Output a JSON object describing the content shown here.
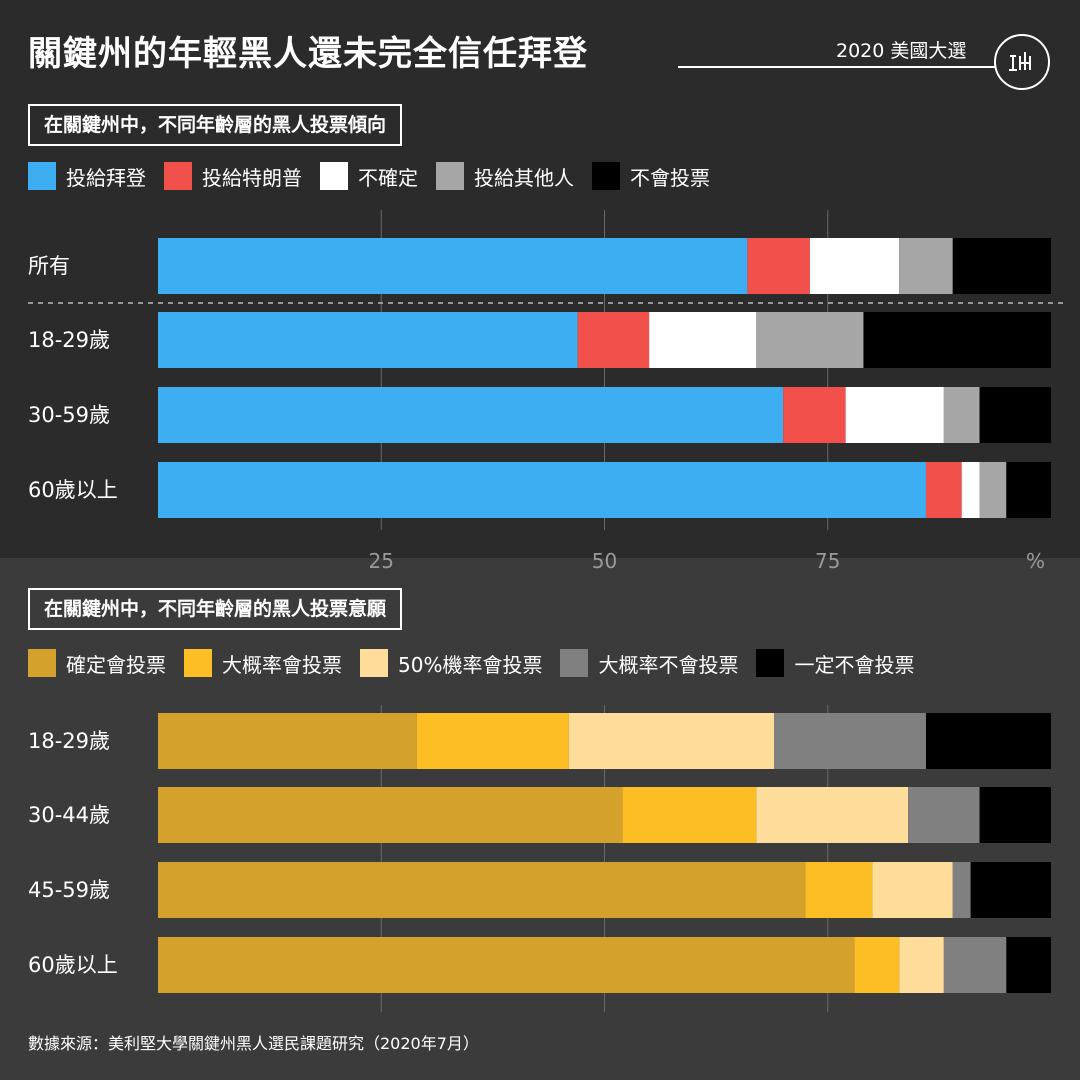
{
  "header": {
    "title": "關鍵州的年輕黑人還未完全信任拜登",
    "series_tag": "2020 美國大選",
    "logo_icon": "initium-logo-icon"
  },
  "chart_data": [
    {
      "type": "bar",
      "orientation": "horizontal",
      "stacked": true,
      "title": "在關鍵州中，不同年齡層的黑人投票傾向",
      "unit": "%",
      "xlim": [
        0,
        100
      ],
      "ticks": [
        25,
        50,
        75
      ],
      "grid": true,
      "legend_position": "top-left",
      "categories": [
        "所有",
        "18-29歲",
        "30-59歲",
        "60歲以上"
      ],
      "divider_after_first": true,
      "series": [
        {
          "name": "投給拜登",
          "color": "#3daef2",
          "values": [
            66,
            47,
            70,
            86
          ]
        },
        {
          "name": "投給特朗普",
          "color": "#f2504b",
          "values": [
            7,
            8,
            7,
            4
          ]
        },
        {
          "name": "不確定",
          "color": "#ffffff",
          "values": [
            10,
            12,
            11,
            2
          ]
        },
        {
          "name": "投給其他人",
          "color": "#a6a6a6",
          "values": [
            6,
            12,
            4,
            3
          ]
        },
        {
          "name": "不會投票",
          "color": "#000000",
          "values": [
            11,
            21,
            8,
            5
          ]
        }
      ]
    },
    {
      "type": "bar",
      "orientation": "horizontal",
      "stacked": true,
      "title": "在關鍵州中，不同年齡層的黑人投票意願",
      "unit": "%",
      "xlim": [
        0,
        100
      ],
      "ticks": [
        25,
        50,
        75
      ],
      "grid": true,
      "legend_position": "top-left",
      "categories": [
        "18-29歲",
        "30-44歲",
        "45-59歲",
        "60歲以上"
      ],
      "series": [
        {
          "name": "確定會投票",
          "color": "#d4a12d",
          "values": [
            29,
            52,
            72.5,
            78
          ]
        },
        {
          "name": "大概率會投票",
          "color": "#fdbd24",
          "values": [
            17,
            15,
            7.5,
            5
          ]
        },
        {
          "name": "50%機率會投票",
          "color": "#fedd9a",
          "values": [
            23,
            17,
            9,
            5
          ]
        },
        {
          "name": "大概率不會投票",
          "color": "#808080",
          "values": [
            17,
            8,
            2,
            7
          ]
        },
        {
          "name": "一定不會投票",
          "color": "#000000",
          "values": [
            14,
            8,
            9,
            5
          ]
        }
      ]
    }
  ],
  "axis": {
    "tick_labels": [
      "25",
      "50",
      "75"
    ],
    "unit_label": "%"
  },
  "source": "數據來源：美利堅大學關鍵州黑人選民課題研究（2020年7月）"
}
